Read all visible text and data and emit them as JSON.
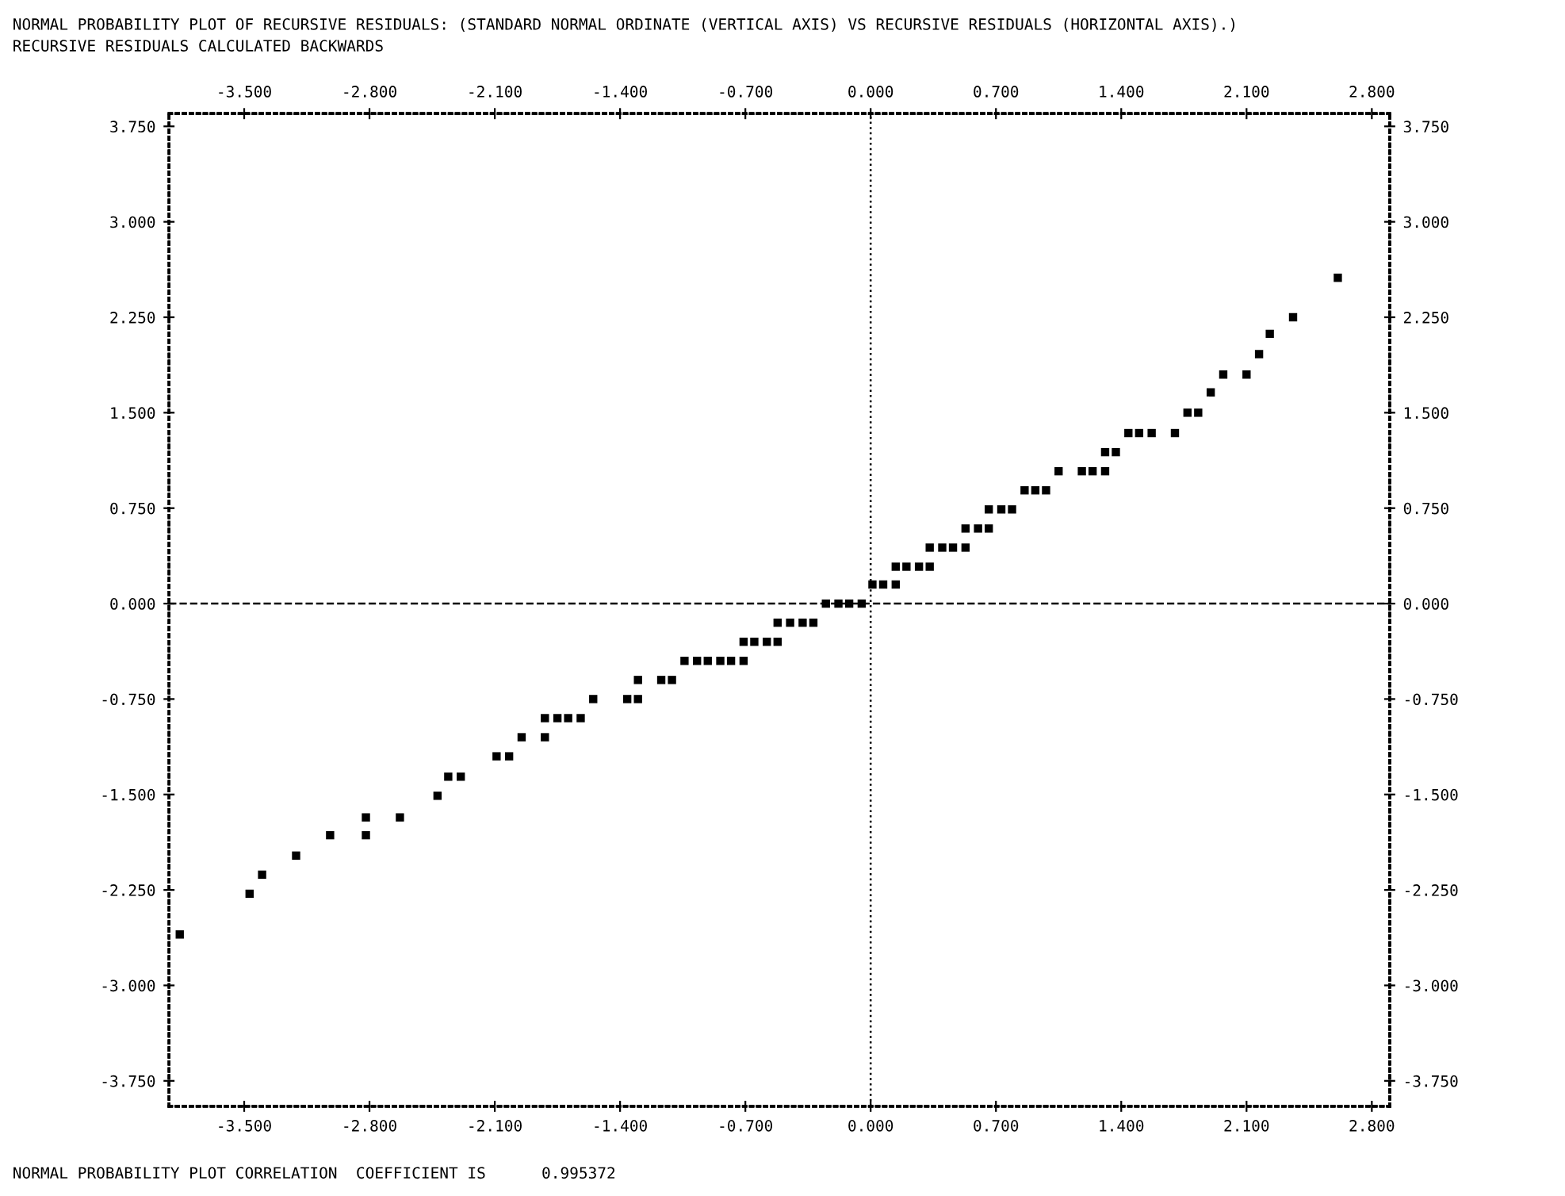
{
  "chart_data": {
    "type": "scatter",
    "title": "NORMAL PROBABILITY PLOT OF RECURSIVE RESIDUALS: (STANDARD NORMAL ORDINATE (VERTICAL AXIS) VS RECURSIVE RESIDUALS (HORIZONTAL AXIS).)",
    "subtitle": "RECURSIVE RESIDUALS CALCULATED BACKWARDS",
    "annotations": [
      "NORMAL PROBABILITY PLOT CORRELATION  COEFFICIENT IS      0.995372"
    ],
    "series": [
      {
        "color": "#000000",
        "x": [
          -3.86,
          -3.47,
          -3.4,
          -3.21,
          -3.02,
          -2.82,
          -2.82,
          -2.63,
          -2.42,
          -2.36,
          -2.29,
          -2.09,
          -2.02,
          -1.95,
          -1.82,
          -1.82,
          -1.75,
          -1.69,
          -1.62,
          -1.55,
          -1.36,
          -1.3,
          -1.3,
          -1.17,
          -1.11,
          -1.04,
          -0.97,
          -0.91,
          -0.84,
          -0.78,
          -0.71,
          -0.71,
          -0.65,
          -0.58,
          -0.52,
          -0.52,
          -0.45,
          -0.38,
          -0.32,
          -0.25,
          -0.18,
          -0.12,
          -0.05,
          0.01,
          0.07,
          0.14,
          0.14,
          0.2,
          0.27,
          0.33,
          0.33,
          0.4,
          0.46,
          0.53,
          0.53,
          0.6,
          0.66,
          0.66,
          0.73,
          0.79,
          0.86,
          0.92,
          0.98,
          1.05,
          1.18,
          1.24,
          1.31,
          1.31,
          1.37,
          1.44,
          1.5,
          1.57,
          1.7,
          1.77,
          1.83,
          1.9,
          1.97,
          2.1,
          2.17,
          2.23,
          2.36,
          2.61
        ],
        "values": [
          -2.6,
          -2.28,
          -2.13,
          -1.98,
          -1.82,
          -1.82,
          -1.68,
          -1.68,
          -1.51,
          -1.36,
          -1.36,
          -1.2,
          -1.2,
          -1.05,
          -1.05,
          -0.9,
          -0.9,
          -0.9,
          -0.9,
          -0.75,
          -0.75,
          -0.75,
          -0.6,
          -0.6,
          -0.6,
          -0.45,
          -0.45,
          -0.45,
          -0.45,
          -0.45,
          -0.45,
          -0.3,
          -0.3,
          -0.3,
          -0.3,
          -0.15,
          -0.15,
          -0.15,
          -0.15,
          0.0,
          0.0,
          0.0,
          0.0,
          0.15,
          0.15,
          0.15,
          0.29,
          0.29,
          0.29,
          0.29,
          0.44,
          0.44,
          0.44,
          0.44,
          0.59,
          0.59,
          0.59,
          0.74,
          0.74,
          0.74,
          0.89,
          0.89,
          0.89,
          1.04,
          1.04,
          1.04,
          1.04,
          1.19,
          1.19,
          1.34,
          1.34,
          1.34,
          1.34,
          1.5,
          1.5,
          1.66,
          1.8,
          1.8,
          1.96,
          2.12,
          2.25,
          2.56
        ]
      }
    ],
    "marker": "square",
    "xlim": [
      -3.92,
      2.9
    ],
    "ylim": [
      -3.95,
      3.85
    ],
    "x2lim": [
      -3.92,
      2.9
    ],
    "y2lim": [
      -3.95,
      3.85
    ],
    "xticks": [
      {
        "value": -3.5,
        "label": "-3.500"
      },
      {
        "value": -2.8,
        "label": "-2.800"
      },
      {
        "value": -2.1,
        "label": "-2.100"
      },
      {
        "value": -1.4,
        "label": "-1.400"
      },
      {
        "value": -0.7,
        "label": "-0.700"
      },
      {
        "value": 0,
        "label": "0.000"
      },
      {
        "value": 0.7,
        "label": "0.700"
      },
      {
        "value": 1.4,
        "label": "1.400"
      },
      {
        "value": 2.1,
        "label": "2.100"
      },
      {
        "value": 2.8,
        "label": "2.800"
      }
    ],
    "x2ticks": [
      {
        "value": -3.5,
        "label": "-3.500"
      },
      {
        "value": -2.8,
        "label": "-2.800"
      },
      {
        "value": -2.1,
        "label": "-2.100"
      },
      {
        "value": -1.4,
        "label": "-1.400"
      },
      {
        "value": -0.7,
        "label": "-0.700"
      },
      {
        "value": 0,
        "label": "0.000"
      },
      {
        "value": 0.7,
        "label": "0.700"
      },
      {
        "value": 1.4,
        "label": "1.400"
      },
      {
        "value": 2.1,
        "label": "2.100"
      },
      {
        "value": 2.8,
        "label": "2.800"
      }
    ],
    "yticks": [
      {
        "value": -3.75,
        "label": "-3.750"
      },
      {
        "value": -3.0,
        "label": "-3.000"
      },
      {
        "value": -2.25,
        "label": "-2.250"
      },
      {
        "value": -1.5,
        "label": "-1.500"
      },
      {
        "value": -0.75,
        "label": "-0.750"
      },
      {
        "value": 0,
        "label": "0.000"
      },
      {
        "value": 0.75,
        "label": "0.750"
      },
      {
        "value": 1.5,
        "label": "1.500"
      },
      {
        "value": 2.25,
        "label": "2.250"
      },
      {
        "value": 3.0,
        "label": "3.000"
      },
      {
        "value": 3.75,
        "label": "3.750"
      }
    ],
    "y2ticks": [
      {
        "value": -3.75,
        "label": "-3.750"
      },
      {
        "value": -3.0,
        "label": "-3.000"
      },
      {
        "value": -2.25,
        "label": "-2.250"
      },
      {
        "value": -1.5,
        "label": "-1.500"
      },
      {
        "value": -0.75,
        "label": "-0.750"
      },
      {
        "value": 0,
        "label": "0.000"
      },
      {
        "value": 0.75,
        "label": "0.750"
      },
      {
        "value": 1.5,
        "label": "1.500"
      },
      {
        "value": 2.25,
        "label": "2.250"
      },
      {
        "value": 3.0,
        "label": "3.000"
      },
      {
        "value": 3.75,
        "label": "3.750"
      }
    ],
    "ref_lines": [
      {
        "axis": "x",
        "value": 0,
        "color": "#000000",
        "line_style": "dotted"
      },
      {
        "axis": "y",
        "value": 0,
        "color": "#000000",
        "line_style": "dashed"
      }
    ],
    "grid": false,
    "legend": false
  }
}
